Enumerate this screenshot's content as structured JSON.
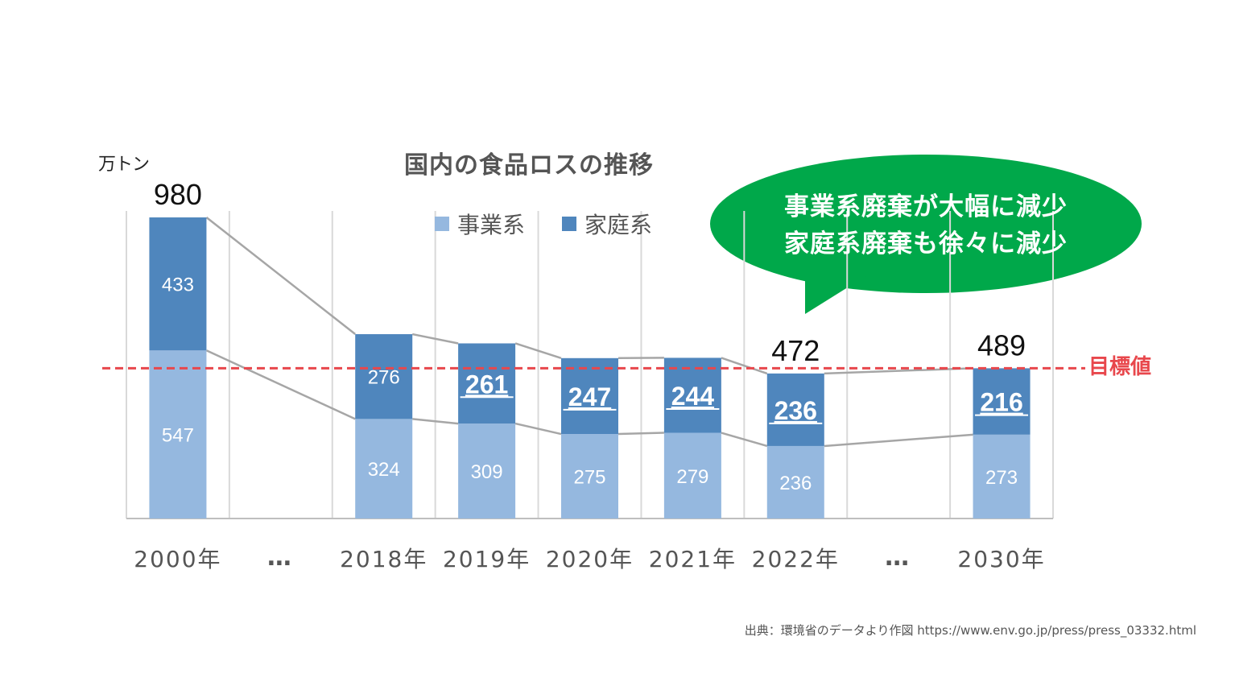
{
  "unit_label": "万トン",
  "title": "国内の食品ロスの推移",
  "legend": [
    {
      "label": "事業系",
      "color": "#95b8df"
    },
    {
      "label": "家庭系",
      "color": "#4f86bd"
    }
  ],
  "callout": {
    "line1": "事業系廃棄が大幅に減少",
    "line2": "家庭系廃棄も徐々に減少",
    "color": "#00a84a"
  },
  "target_label": "目標値",
  "source_note": "出典：環境省のデータより作図  https://www.env.go.jp/press/press_03332.html",
  "colors": {
    "business": "#95b8df",
    "household": "#4f86bd",
    "target": "#e8474c",
    "connector": "#a6a6a6",
    "grid": "#d9d9d9"
  },
  "chart_data": {
    "type": "bar",
    "stacked": true,
    "categories": [
      "2000年",
      "…",
      "2018年",
      "2019年",
      "2020年",
      "2021年",
      "2022年",
      "…",
      "2030年"
    ],
    "series": [
      {
        "name": "事業系",
        "values": [
          547,
          null,
          324,
          309,
          275,
          279,
          236,
          null,
          273
        ]
      },
      {
        "name": "家庭系",
        "values": [
          433,
          null,
          276,
          261,
          247,
          244,
          236,
          null,
          216
        ]
      }
    ],
    "totals": [
      {
        "category": "2000年",
        "label": "980"
      },
      {
        "category": "2022年",
        "label": "472"
      },
      {
        "category": "2030年",
        "label": "489"
      }
    ],
    "emphasized_household": [
      "2019年",
      "2020年",
      "2021年",
      "2022年",
      "2030年"
    ],
    "target_line": 489,
    "ylim": [
      0,
      1050
    ],
    "grid": true
  }
}
